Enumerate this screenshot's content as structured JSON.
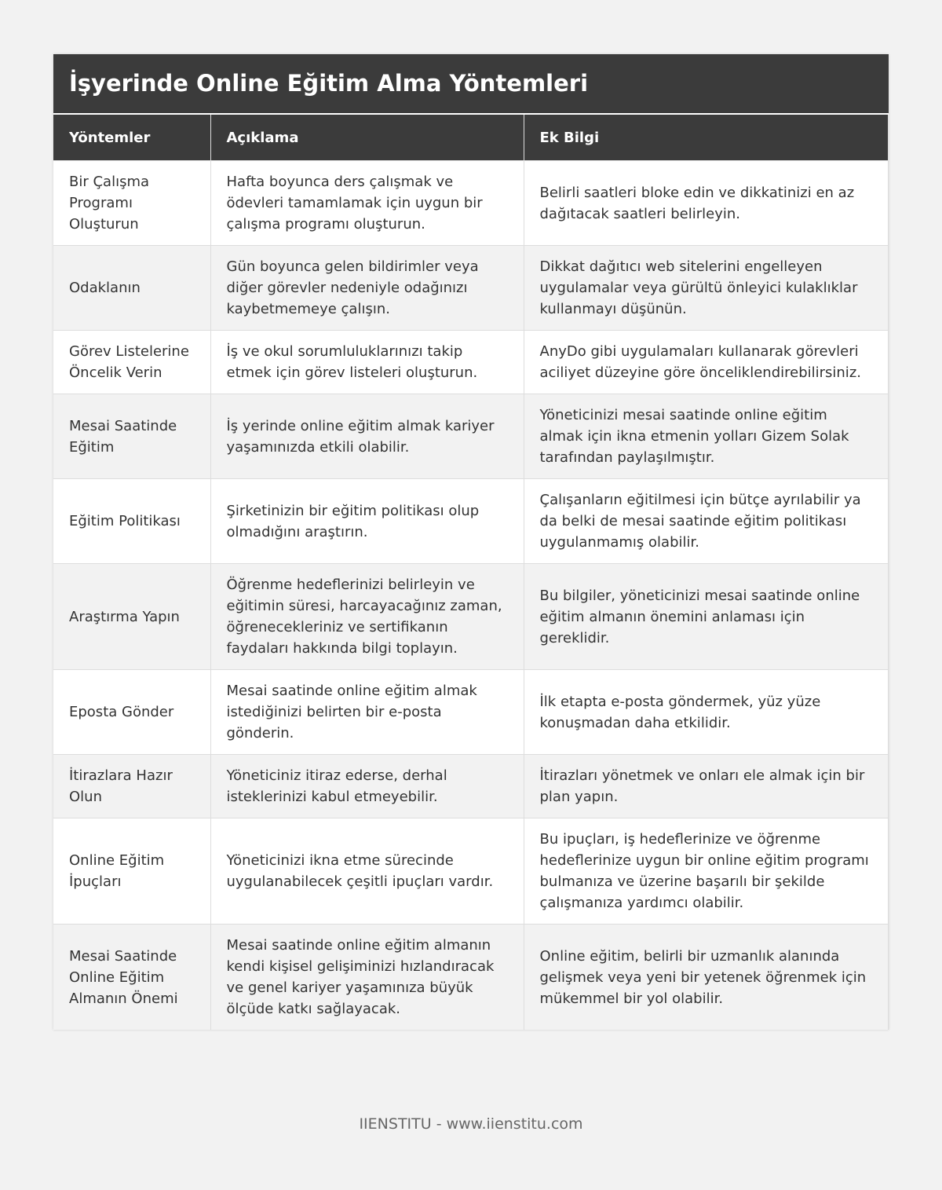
{
  "header": {
    "title": "İşyerinde Online Eğitim Alma Yöntemleri"
  },
  "table": {
    "columns": [
      "Yöntemler",
      "Açıklama",
      "Ek Bilgi"
    ],
    "rows": [
      [
        "Bir Çalışma Programı Oluşturun",
        "Hafta boyunca ders çalışmak ve ödevleri tamamlamak için uygun bir çalışma programı oluşturun.",
        "Belirli saatleri bloke edin ve dikkatinizi en az dağıtacak saatleri belirleyin."
      ],
      [
        "Odaklanın",
        "Gün boyunca gelen bildirimler veya diğer görevler nedeniyle odağınızı kaybetmemeye çalışın.",
        "Dikkat dağıtıcı web sitelerini engelleyen uygulamalar veya gürültü önleyici kulaklıklar kullanmayı düşünün."
      ],
      [
        "Görev Listelerine Öncelik Verin",
        "İş ve okul sorumluluklarınızı takip etmek için görev listeleri oluşturun.",
        "AnyDo gibi uygulamaları kullanarak görevleri aciliyet düzeyine göre önceliklendirebilirsiniz."
      ],
      [
        "Mesai Saatinde Eğitim",
        "İş yerinde online eğitim almak kariyer yaşamınızda etkili olabilir.",
        "Yöneticinizi mesai saatinde online eğitim almak için ikna etmenin yolları Gizem Solak tarafından paylaşılmıştır."
      ],
      [
        "Eğitim Politikası",
        "Şirketinizin bir eğitim politikası olup olmadığını araştırın.",
        "Çalışanların eğitilmesi için bütçe ayrılabilir ya da belki de mesai saatinde eğitim politikası uygulanmamış olabilir."
      ],
      [
        "Araştırma Yapın",
        "Öğrenme hedeflerinizi belirleyin ve eğitimin süresi, harcayacağınız zaman, öğrenecekleriniz ve sertifikanın faydaları hakkında bilgi toplayın.",
        "Bu bilgiler, yöneticinizi mesai saatinde online eğitim almanın önemini anlaması için gereklidir."
      ],
      [
        "Eposta Gönder",
        "Mesai saatinde online eğitim almak istediğinizi belirten bir e-posta gönderin.",
        "İlk etapta e-posta göndermek, yüz yüze konuşmadan daha etkilidir."
      ],
      [
        "İtirazlara Hazır Olun",
        "Yöneticiniz itiraz ederse, derhal isteklerinizi kabul etmeyebilir.",
        "İtirazları yönetmek ve onları ele almak için bir plan yapın."
      ],
      [
        "Online Eğitim İpuçları",
        "Yöneticinizi ikna etme sürecinde uygulanabilecek çeşitli ipuçları vardır.",
        "Bu ipuçları, iş hedeflerinize ve öğrenme hedeflerinize uygun bir online eğitim programı bulmanıza ve üzerine başarılı bir şekilde çalışmanıza yardımcı olabilir."
      ],
      [
        "Mesai Saatinde Online Eğitim Almanın Önemi",
        "Mesai saatinde online eğitim almanın kendi kişisel gelişiminizi hızlandıracak ve genel kariyer yaşamınıza büyük ölçüde katkı sağlayacak.",
        "Online eğitim, belirli bir uzmanlık alanında gelişmek veya yeni bir yetenek öğrenmek için mükemmel bir yol olabilir."
      ]
    ]
  },
  "footer": {
    "text": "IIENSTITU - www.iienstitu.com"
  }
}
